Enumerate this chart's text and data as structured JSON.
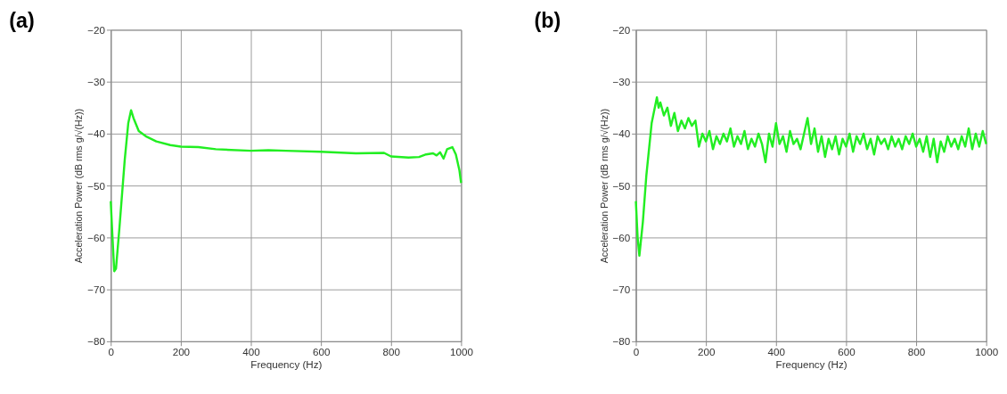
{
  "chart_data": [
    {
      "type": "line",
      "title": "(a)",
      "xlabel": "Frequency (Hz)",
      "ylabel": "Acceleration Power (dB rms g/√(Hz))",
      "xlim": [
        0,
        1000
      ],
      "ylim": [
        -80,
        -20
      ],
      "xticks": [
        0,
        200,
        400,
        600,
        800,
        1000
      ],
      "yticks": [
        -80,
        -70,
        -60,
        -50,
        -40,
        -30,
        -20
      ],
      "grid": true,
      "series": [
        {
          "color": "#22ee22",
          "x": [
            0,
            5,
            10,
            15,
            25,
            40,
            50,
            58,
            65,
            80,
            100,
            130,
            170,
            200,
            250,
            300,
            400,
            450,
            500,
            600,
            700,
            780,
            800,
            850,
            880,
            900,
            920,
            930,
            940,
            950,
            960,
            975,
            985,
            995,
            1000
          ],
          "values": [
            -53,
            -60,
            -66.5,
            -66,
            -58,
            -45,
            -38,
            -35.5,
            -37,
            -39.5,
            -40.5,
            -41.5,
            -42.2,
            -42.5,
            -42.6,
            -43,
            -43.3,
            -43.2,
            -43.3,
            -43.5,
            -43.8,
            -43.7,
            -44.4,
            -44.6,
            -44.5,
            -44,
            -43.8,
            -44.2,
            -43.6,
            -44.8,
            -43,
            -42.6,
            -44,
            -47,
            -49.5
          ]
        }
      ]
    },
    {
      "type": "line",
      "title": "(b)",
      "xlabel": "Frequency (Hz)",
      "ylabel": "Acceleration Power (dB rms g/√(Hz))",
      "xlim": [
        0,
        1000
      ],
      "ylim": [
        -80,
        -20
      ],
      "xticks": [
        0,
        200,
        400,
        600,
        800,
        1000
      ],
      "yticks": [
        -80,
        -70,
        -60,
        -50,
        -40,
        -30,
        -20
      ],
      "grid": true,
      "series": [
        {
          "color": "#22ee22",
          "x": [
            0,
            5,
            10,
            20,
            30,
            45,
            60,
            65,
            70,
            80,
            90,
            100,
            110,
            120,
            130,
            140,
            150,
            160,
            170,
            180,
            190,
            200,
            210,
            220,
            230,
            240,
            250,
            260,
            270,
            280,
            290,
            300,
            310,
            320,
            330,
            340,
            350,
            360,
            370,
            380,
            390,
            400,
            410,
            420,
            430,
            440,
            450,
            460,
            470,
            480,
            490,
            500,
            510,
            520,
            530,
            540,
            550,
            560,
            570,
            580,
            590,
            600,
            610,
            620,
            630,
            640,
            650,
            660,
            670,
            680,
            690,
            700,
            710,
            720,
            730,
            740,
            750,
            760,
            770,
            780,
            790,
            800,
            810,
            820,
            830,
            840,
            850,
            860,
            870,
            880,
            890,
            900,
            910,
            920,
            930,
            940,
            950,
            960,
            970,
            980,
            990,
            1000
          ],
          "values": [
            -53,
            -60,
            -63.5,
            -57,
            -48,
            -38,
            -33,
            -35,
            -34,
            -36.5,
            -35,
            -38.5,
            -36,
            -39.5,
            -37.5,
            -39,
            -37,
            -38.5,
            -37.5,
            -42.5,
            -40,
            -41.5,
            -39.5,
            -43,
            -40.5,
            -42,
            -40,
            -41.5,
            -39,
            -42.5,
            -40.5,
            -42,
            -39.5,
            -43,
            -41,
            -42.5,
            -40,
            -42,
            -45.5,
            -40,
            -42.5,
            -38,
            -42,
            -40.5,
            -43.5,
            -39.5,
            -42,
            -41,
            -43,
            -40,
            -37,
            -42,
            -39,
            -43.5,
            -40.5,
            -44.5,
            -41,
            -43,
            -40.5,
            -44,
            -41,
            -42.5,
            -40,
            -43.5,
            -40.5,
            -42,
            -40,
            -43,
            -41,
            -44,
            -40.5,
            -42,
            -41,
            -43,
            -40.5,
            -42.5,
            -41,
            -43,
            -40.5,
            -42,
            -40,
            -42.5,
            -41,
            -43.5,
            -40.5,
            -44.5,
            -41,
            -45.5,
            -41.5,
            -43.5,
            -40.5,
            -42.5,
            -41,
            -43,
            -40.5,
            -42.5,
            -39,
            -43,
            -40,
            -42.5,
            -39.5,
            -42
          ]
        }
      ]
    }
  ]
}
